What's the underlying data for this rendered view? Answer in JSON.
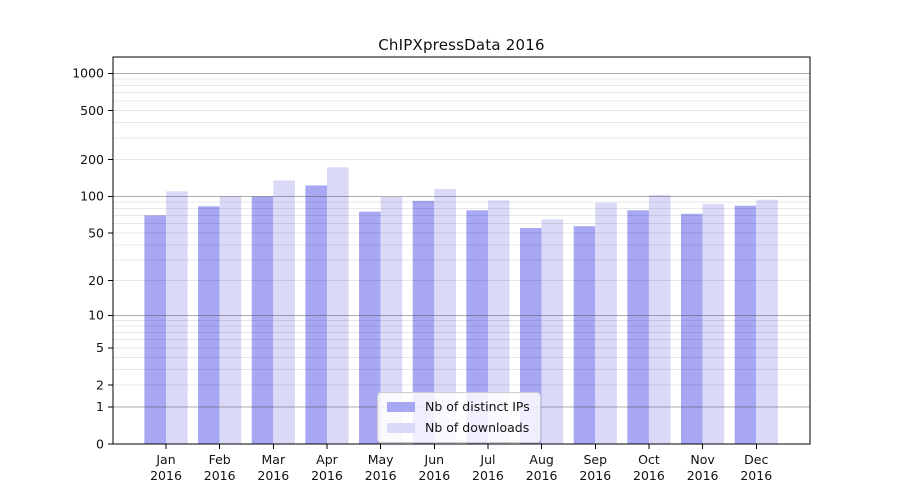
{
  "window": {
    "background": "#ffffff"
  },
  "chart_data": {
    "type": "bar",
    "title": "ChIPXpressData 2016",
    "categories": [
      "Jan",
      "Feb",
      "Mar",
      "Apr",
      "May",
      "Jun",
      "Jul",
      "Aug",
      "Sep",
      "Oct",
      "Nov",
      "Dec"
    ],
    "x_tick_second_line": "2016",
    "series": [
      {
        "name": "Nb of distinct IPs",
        "color": "#a7a7f3",
        "values": [
          70,
          83,
          100,
          123,
          75,
          92,
          77,
          55,
          57,
          77,
          72,
          84
        ]
      },
      {
        "name": "Nb of downloads",
        "color": "#dadaf8",
        "values": [
          110,
          100,
          135,
          173,
          99,
          115,
          93,
          65,
          89,
          103,
          87,
          94
        ]
      }
    ],
    "yscale": "log10(1+x)",
    "ylim": [
      0,
      1350
    ],
    "y_ticks": [
      0,
      1,
      2,
      5,
      10,
      20,
      50,
      100,
      200,
      500,
      1000
    ],
    "y_major_gridlines": [
      1,
      10,
      100,
      1000
    ],
    "y_minor_gridlines": [
      2,
      3,
      4,
      5,
      6,
      7,
      8,
      9,
      20,
      30,
      40,
      50,
      60,
      70,
      80,
      90,
      200,
      300,
      400,
      500,
      600,
      700,
      800,
      900
    ],
    "grid": "on",
    "legend": {
      "location": "lower center",
      "entries": [
        "Nb of distinct IPs",
        "Nb of downloads"
      ]
    },
    "colors": {
      "major_grid": "#b3b3b3",
      "minor_grid": "#ebebeb",
      "spine": "#000000",
      "text": "#111111"
    }
  }
}
